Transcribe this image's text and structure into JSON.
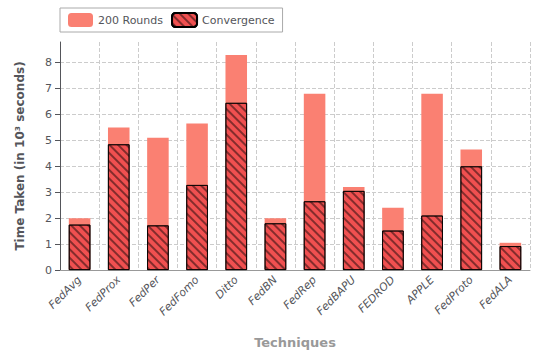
{
  "chart_data": {
    "type": "bar",
    "categories": [
      "FedAvg",
      "FedProx",
      "FedPer",
      "FedFomo",
      "Ditto",
      "FedBN",
      "FedRep",
      "FedBAPU",
      "FEDROD",
      "APPLE",
      "FedProto",
      "FedALA"
    ],
    "series": [
      {
        "name": "200 Rounds",
        "color": "#FA8072",
        "values": [
          2.0,
          5.5,
          5.1,
          5.65,
          8.3,
          2.0,
          6.8,
          3.2,
          2.4,
          6.8,
          4.65,
          1.05
        ]
      },
      {
        "name": "Convergence",
        "color": "#F05050",
        "values": [
          1.75,
          4.85,
          1.72,
          3.28,
          6.45,
          1.8,
          2.65,
          3.05,
          1.52,
          2.1,
          4.0,
          0.92
        ]
      }
    ],
    "xlabel": "Techniques",
    "ylabel": "Time Taken (in 10³ seconds)",
    "ylim": [
      0,
      8.8
    ],
    "yticks": [
      0,
      1,
      2,
      3,
      4,
      5,
      6,
      7,
      8
    ],
    "grid": true,
    "legend": "upper left"
  }
}
